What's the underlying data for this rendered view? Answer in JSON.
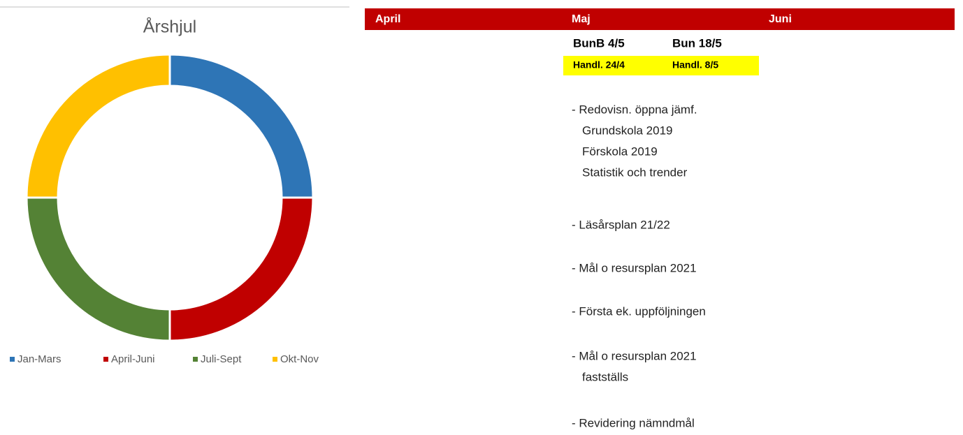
{
  "chart_data": {
    "type": "donut",
    "title": "Årshjul",
    "categories": [
      "Jan-Mars",
      "April-Juni",
      "Juli-Sept",
      "Okt-Nov"
    ],
    "values": [
      25,
      25,
      25,
      25
    ],
    "colors": [
      "#2e75b6",
      "#c00000",
      "#548235",
      "#ffc000"
    ],
    "legend": "bottom"
  },
  "sheet": {
    "headers": [
      "April",
      "Maj",
      "Juni"
    ],
    "meetings": [
      "BunB 4/5",
      "Bun 18/5"
    ],
    "deadlines": [
      "Handl. 24/4",
      "Handl. 8/5"
    ],
    "notes": [
      [
        "- Redovisn. öppna jämf.",
        "Grundskola 2019",
        "Förskola 2019",
        "Statistik och trender"
      ],
      [
        "- Läsårsplan 21/22"
      ],
      [
        "- Mål o resursplan 2021"
      ],
      [
        "- Första ek. uppföljningen"
      ],
      [
        "- Mål o resursplan 2021",
        "fastställs"
      ],
      [
        "- Revidering nämndmål"
      ]
    ]
  }
}
